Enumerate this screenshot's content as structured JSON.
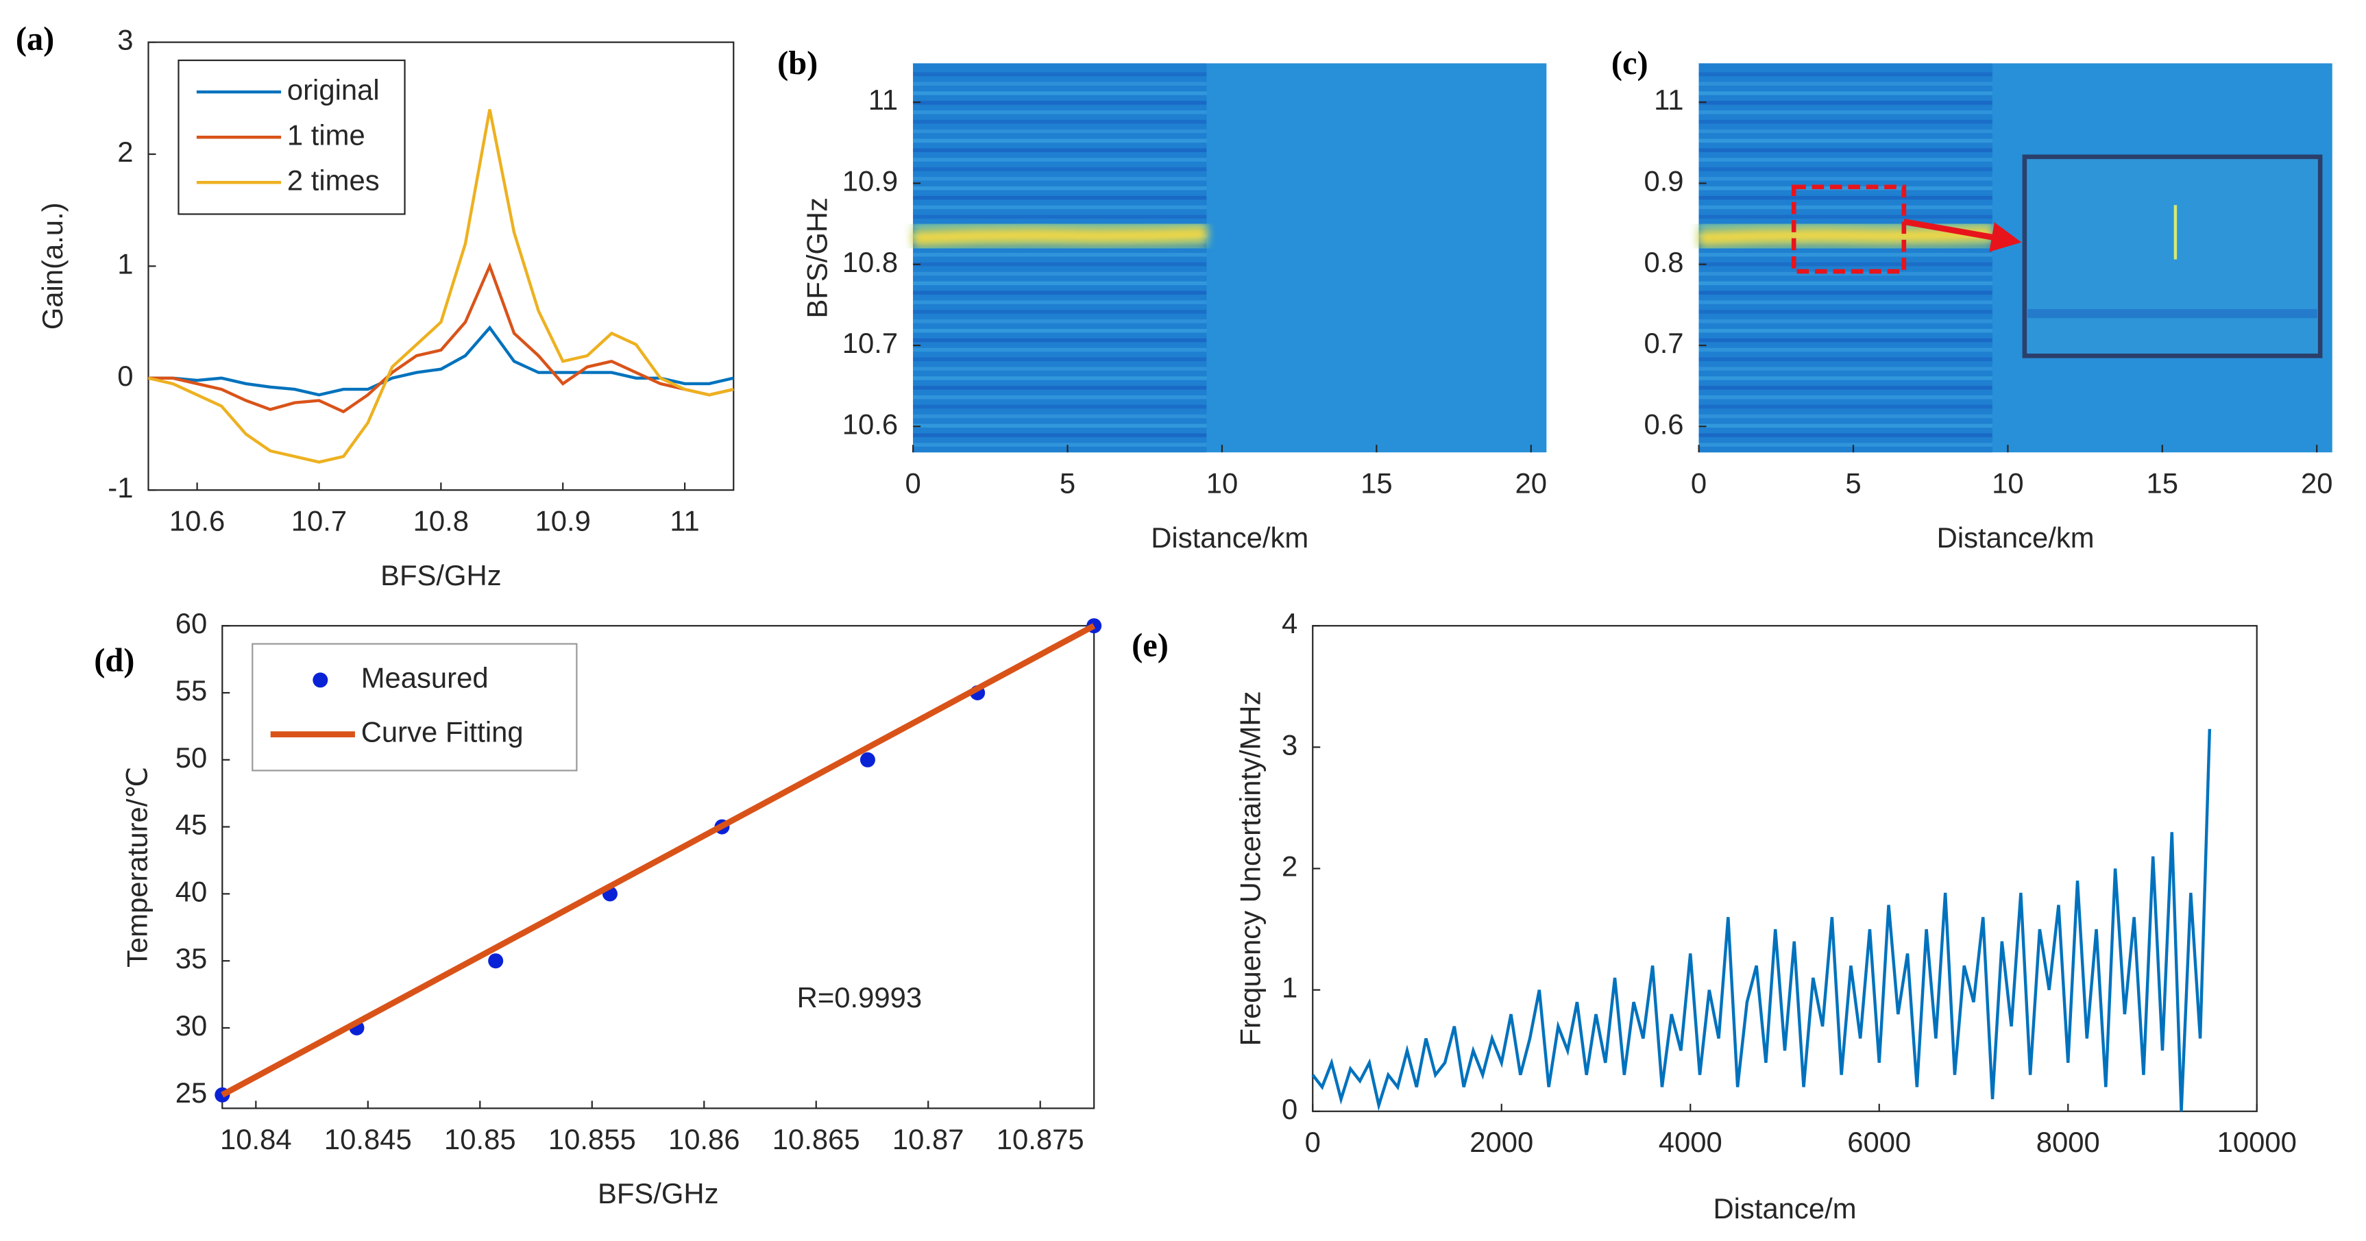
{
  "chart_data": [
    {
      "type": "line",
      "label": "(a)",
      "xlabel": "BFS/GHz",
      "ylabel": "Gain(a.u.)",
      "xlim": [
        10.56,
        11.04
      ],
      "xticks": [
        10.6,
        10.7,
        10.8,
        10.9,
        11
      ],
      "ylim": [
        -1,
        3
      ],
      "yticks": [
        -1,
        0,
        1,
        2,
        3
      ],
      "legend": "upper left",
      "x": [
        10.56,
        10.58,
        10.6,
        10.62,
        10.64,
        10.66,
        10.68,
        10.7,
        10.72,
        10.74,
        10.76,
        10.78,
        10.8,
        10.82,
        10.84,
        10.86,
        10.88,
        10.9,
        10.92,
        10.94,
        10.96,
        10.98,
        11,
        11.02,
        11.04
      ],
      "series": [
        {
          "name": "original",
          "color": "#0072bd",
          "values": [
            0,
            0,
            -0.02,
            0,
            -0.05,
            -0.08,
            -0.1,
            -0.15,
            -0.1,
            -0.1,
            0,
            0.05,
            0.08,
            0.2,
            0.45,
            0.15,
            0.05,
            0.05,
            0.05,
            0.05,
            0,
            0,
            -0.05,
            -0.05,
            0
          ]
        },
        {
          "name": "1 time",
          "color": "#d95319",
          "values": [
            0,
            0,
            -0.05,
            -0.1,
            -0.2,
            -0.28,
            -0.22,
            -0.2,
            -0.3,
            -0.15,
            0.05,
            0.2,
            0.25,
            0.5,
            1.0,
            0.4,
            0.2,
            -0.05,
            0.1,
            0.15,
            0.05,
            -0.05,
            -0.1,
            -0.15,
            -0.1
          ]
        },
        {
          "name": "2 times",
          "color": "#edb120",
          "values": [
            0,
            -0.05,
            -0.15,
            -0.25,
            -0.5,
            -0.65,
            -0.7,
            -0.75,
            -0.7,
            -0.4,
            0.1,
            0.3,
            0.5,
            1.2,
            2.4,
            1.3,
            0.6,
            0.15,
            0.2,
            0.4,
            0.3,
            0,
            -0.1,
            -0.15,
            -0.1
          ]
        }
      ]
    },
    {
      "type": "heatmap",
      "label": "(b)",
      "xlabel": "Distance/km",
      "ylabel": "BFS/GHz",
      "xlim": [
        0,
        20.5
      ],
      "xticks": [
        0,
        5,
        10,
        15,
        20
      ],
      "ylim": [
        10.568,
        11.048
      ],
      "yticks": [
        10.6,
        10.7,
        10.8,
        10.9,
        11
      ],
      "x": [
        0,
        2,
        4,
        6,
        8,
        9.5
      ],
      "values": [
        10.832,
        10.835,
        10.836,
        10.835,
        10.836,
        10.838
      ]
    },
    {
      "type": "heatmap",
      "label": "(c)",
      "xlabel": "Distance/km",
      "inset": true,
      "xlim": [
        0,
        20.5
      ],
      "xticks": [
        0,
        5,
        10,
        15,
        20
      ],
      "ylim": [
        10.568,
        11.048
      ],
      "yticks": [
        {
          "value": 10.6,
          "label": "0.6"
        },
        {
          "value": 10.7,
          "label": "0.7"
        },
        {
          "value": 10.8,
          "label": "0.8"
        },
        {
          "value": 10.9,
          "label": "0.9"
        },
        11
      ],
      "x": [
        0,
        2,
        4,
        6,
        8,
        9.5
      ],
      "values": [
        10.832,
        10.835,
        10.836,
        10.835,
        10.836,
        10.838
      ]
    },
    {
      "type": "scatter",
      "label": "(d)",
      "xlabel": "BFS/GHz",
      "ylabel": "Temperature/℃",
      "annotation": "R=0.9993",
      "xlim": [
        10.8385,
        10.8774
      ],
      "xticks": [
        10.84,
        10.845,
        10.85,
        10.855,
        10.86,
        10.865,
        10.87,
        10.875
      ],
      "ylim": [
        24,
        60
      ],
      "yticks": [
        25,
        30,
        35,
        40,
        45,
        50,
        55,
        60
      ],
      "legend": "upper left",
      "series": [
        {
          "name": "Measured",
          "type": "scatter",
          "color": "#0a22d6",
          "x": [
            10.8385,
            10.8445,
            10.8507,
            10.8558,
            10.8608,
            10.8673,
            10.8722,
            10.8774
          ],
          "values": [
            25,
            30,
            35,
            40,
            45,
            50,
            55,
            60
          ]
        },
        {
          "name": "Curve Fitting",
          "type": "line",
          "color": "#d95319",
          "x": [
            10.8385,
            10.8774
          ],
          "values": [
            25,
            60
          ]
        }
      ]
    },
    {
      "type": "line",
      "label": "(e)",
      "xlabel": "Distance/m",
      "ylabel": "Frequency Uncertainty/MHz",
      "xlim": [
        0,
        10000
      ],
      "xticks": [
        0,
        2000,
        4000,
        6000,
        8000,
        10000
      ],
      "ylim": [
        0,
        4
      ],
      "yticks": [
        0,
        1,
        2,
        3,
        4
      ],
      "x": [
        0,
        100,
        200,
        300,
        400,
        500,
        600,
        700,
        800,
        900,
        1000,
        1100,
        1200,
        1300,
        1400,
        1500,
        1600,
        1700,
        1800,
        1900,
        2000,
        2100,
        2200,
        2300,
        2400,
        2500,
        2600,
        2700,
        2800,
        2900,
        3000,
        3100,
        3200,
        3300,
        3400,
        3500,
        3600,
        3700,
        3800,
        3900,
        4000,
        4100,
        4200,
        4300,
        4400,
        4500,
        4600,
        4700,
        4800,
        4900,
        5000,
        5100,
        5200,
        5300,
        5400,
        5500,
        5600,
        5700,
        5800,
        5900,
        6000,
        6100,
        6200,
        6300,
        6400,
        6500,
        6600,
        6700,
        6800,
        6900,
        7000,
        7100,
        7200,
        7300,
        7400,
        7500,
        7600,
        7700,
        7800,
        7900,
        8000,
        8100,
        8200,
        8300,
        8400,
        8500,
        8600,
        8700,
        8800,
        8900,
        9000,
        9100,
        9200,
        9300,
        9400,
        9500
      ],
      "series": [
        {
          "color": "#0072bd",
          "values": [
            0.3,
            0.2,
            0.4,
            0.1,
            0.35,
            0.25,
            0.4,
            0.05,
            0.3,
            0.2,
            0.5,
            0.2,
            0.6,
            0.3,
            0.4,
            0.7,
            0.2,
            0.5,
            0.3,
            0.6,
            0.4,
            0.8,
            0.3,
            0.6,
            1.0,
            0.2,
            0.7,
            0.5,
            0.9,
            0.3,
            0.8,
            0.4,
            1.1,
            0.3,
            0.9,
            0.6,
            1.2,
            0.2,
            0.8,
            0.5,
            1.3,
            0.3,
            1.0,
            0.6,
            1.6,
            0.2,
            0.9,
            1.2,
            0.4,
            1.5,
            0.5,
            1.4,
            0.2,
            1.1,
            0.7,
            1.6,
            0.3,
            1.2,
            0.6,
            1.5,
            0.4,
            1.7,
            0.8,
            1.3,
            0.2,
            1.5,
            0.6,
            1.8,
            0.3,
            1.2,
            0.9,
            1.6,
            0.1,
            1.4,
            0.7,
            1.8,
            0.3,
            1.5,
            1.0,
            1.7,
            0.4,
            1.9,
            0.6,
            1.5,
            0.2,
            2.0,
            0.8,
            1.6,
            0.3,
            2.1,
            0.5,
            2.3,
            0.0,
            1.8,
            0.6,
            3.15
          ]
        }
      ]
    }
  ]
}
